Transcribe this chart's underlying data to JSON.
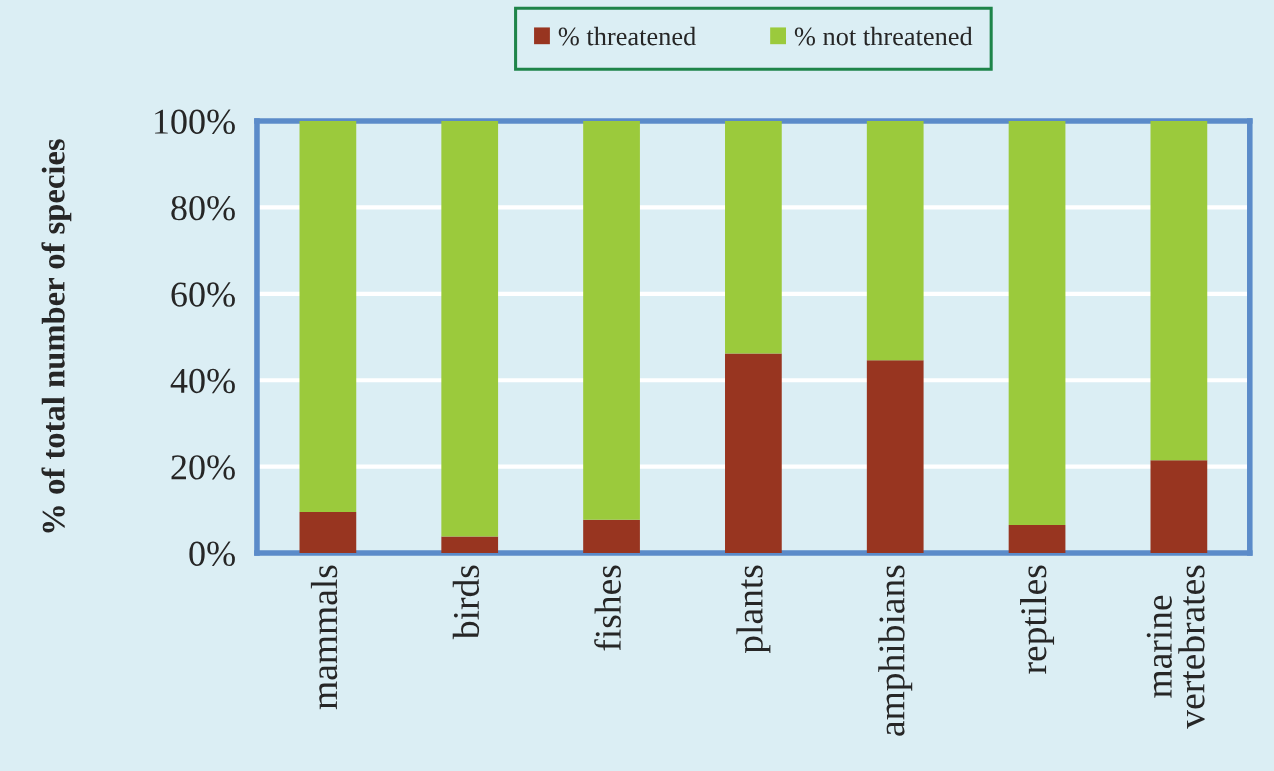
{
  "chart_data": {
    "type": "bar",
    "stacked": true,
    "ylabel": "% of total number of species",
    "categories": [
      "mammals",
      "birds",
      "fishes",
      "plants",
      "amphibians",
      "reptiles",
      "marine\nvertebrates"
    ],
    "series": [
      {
        "name": "% threatened",
        "color": "#983520",
        "values": [
          9.5,
          3.8,
          7.7,
          46.2,
          44.6,
          6.5,
          21.5
        ]
      },
      {
        "name": "% not threatened",
        "color": "#9bca3c",
        "values": [
          90.5,
          96.2,
          92.3,
          53.8,
          55.4,
          93.5,
          78.5
        ]
      }
    ],
    "ylim": [
      0,
      100
    ],
    "yticks": [
      {
        "value": 0,
        "label": "0%"
      },
      {
        "value": 20,
        "label": "20%"
      },
      {
        "value": 40,
        "label": "40%"
      },
      {
        "value": 60,
        "label": "60%"
      },
      {
        "value": 80,
        "label": "80%"
      },
      {
        "value": 100,
        "label": "100%"
      }
    ],
    "grid": "y",
    "legend": "top"
  }
}
